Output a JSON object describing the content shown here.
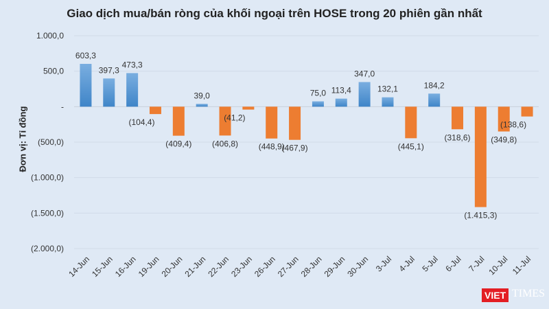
{
  "chart_data": {
    "type": "bar",
    "title": "Giao dịch mua/bán ròng của khối ngoại trên HOSE trong 20 phiên gần nhất",
    "ylabel": "Đơn vị: Tỉ đồng",
    "xlabel": "",
    "categories": [
      "14-Jun",
      "15-Jun",
      "16-Jun",
      "19-Jun",
      "20-Jun",
      "21-Jun",
      "22-Jun",
      "23-Jun",
      "26-Jun",
      "27-Jun",
      "28-Jun",
      "29-Jun",
      "30-Jun",
      "3-Jul",
      "4-Jul",
      "5-Jul",
      "6-Jul",
      "7-Jul",
      "10-Jul",
      "11-Jul"
    ],
    "values": [
      603.3,
      397.3,
      473.3,
      -104.4,
      -409.4,
      39.0,
      -406.8,
      -41.2,
      -448.9,
      -467.9,
      75.0,
      113.4,
      347.0,
      132.1,
      -445.1,
      184.2,
      -318.6,
      -1415.3,
      -349.8,
      -138.6
    ],
    "data_labels": [
      "603,3",
      "397,3",
      "473,3",
      "(104,4)",
      "(409,4)",
      "39,0",
      "(406,8)",
      "(41,2)",
      "(448,9)",
      "(467,9)",
      "75,0",
      "113,4",
      "347,0",
      "132,1",
      "(445,1)",
      "184,2",
      "(318,6)",
      "(1.415,3)",
      "(349,8)",
      "(138,6)"
    ],
    "ylim": [
      -2000,
      1000
    ],
    "yticks": [
      1000,
      500,
      0,
      -500,
      -1000,
      -1500,
      -2000
    ],
    "ytick_labels": [
      "1.000,0",
      "500,0",
      "-",
      "(500,0)",
      "(1.000,0)",
      "(1.500,0)",
      "(2.000,0)"
    ],
    "grid": true,
    "colors": {
      "positive": "#5b9bd5",
      "negative": "#ed7d31",
      "background": "#dfe9f5"
    }
  },
  "logo": {
    "text": "VIETTIMES",
    "viet": "VIET",
    "times": "TIMES"
  }
}
